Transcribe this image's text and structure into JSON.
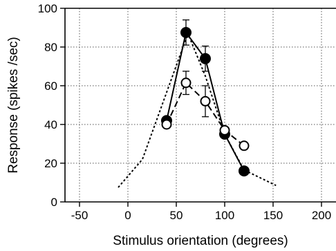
{
  "chart_data": {
    "type": "line",
    "title": "",
    "xlabel": "Stimulus orientation (degrees)",
    "ylabel": "Response (spikes /sec)",
    "xlim": [
      -65,
      215
    ],
    "ylim": [
      0,
      100
    ],
    "x_ticks": [
      -50,
      0,
      50,
      100,
      150,
      200
    ],
    "x_tick_labels": [
      "-50",
      "0",
      "50",
      "100",
      "150",
      "200"
    ],
    "y_ticks": [
      0,
      20,
      40,
      60,
      80,
      100
    ],
    "y_tick_labels": [
      "0",
      "20",
      "40",
      "60",
      "80",
      "100"
    ],
    "grid": true,
    "series": [
      {
        "marker": "filled-circle",
        "line_style": "solid",
        "color": "#000000",
        "x": [
          40,
          60,
          80,
          100,
          120
        ],
        "y": [
          42,
          87.5,
          74,
          35,
          16
        ],
        "error": [
          0,
          6.5,
          6.5,
          0,
          0
        ]
      },
      {
        "marker": "open-circle",
        "line_style": "dashed",
        "color": "#000000",
        "x": [
          40,
          60,
          80,
          100,
          120
        ],
        "y": [
          40,
          61.5,
          52,
          37,
          29
        ],
        "error": [
          0,
          6,
          8,
          0,
          0
        ]
      },
      {
        "marker": "none",
        "line_style": "dotted",
        "color": "#000000",
        "x": [
          -10,
          15,
          62,
          80,
          100,
          120,
          153
        ],
        "y": [
          7.5,
          22,
          87,
          65,
          35,
          16.5,
          8.5
        ]
      }
    ]
  }
}
